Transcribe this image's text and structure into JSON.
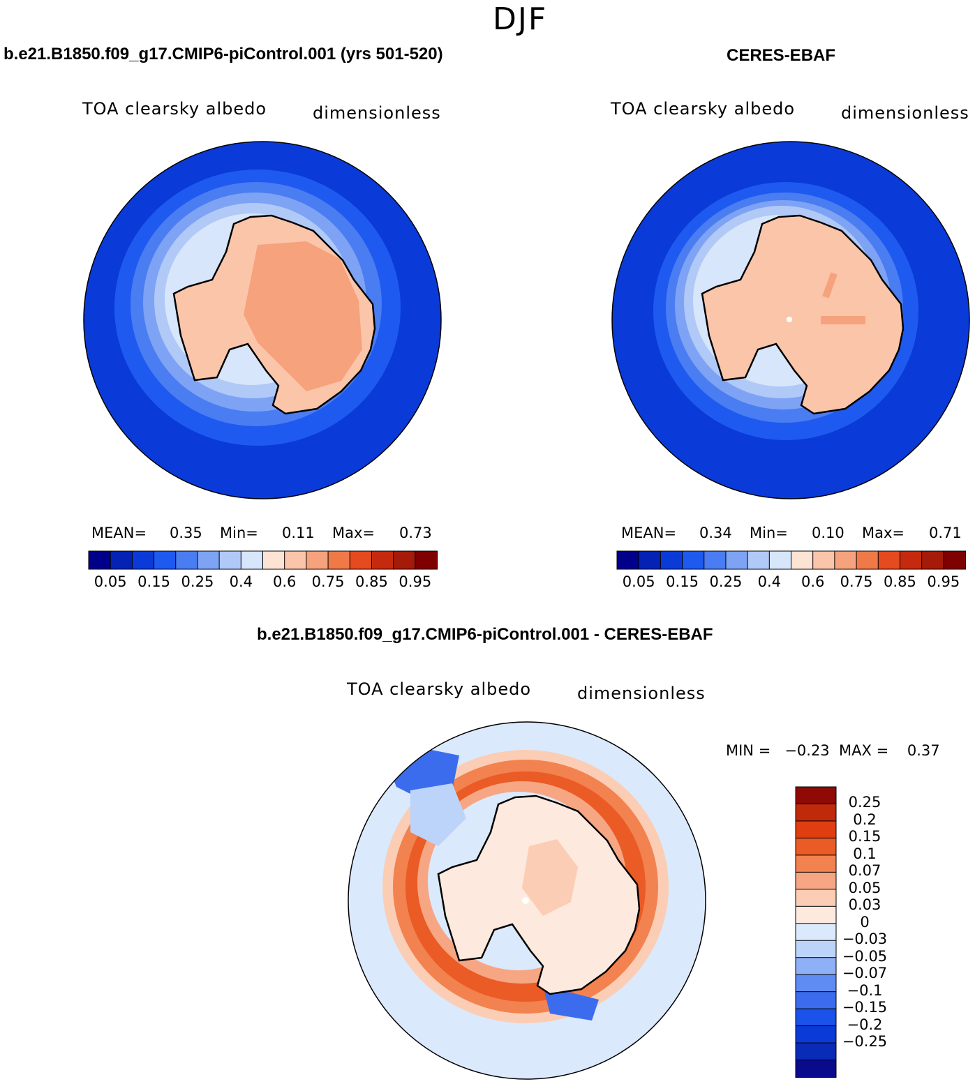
{
  "season": "DJF",
  "colors": {
    "seq": [
      "#00008a",
      "#0422b4",
      "#0a3ad8",
      "#1e5af0",
      "#4a7cf2",
      "#7ea3f4",
      "#b1c9f7",
      "#d7e6fb",
      "#fde3d4",
      "#fbc5aa",
      "#f6a27c",
      "#ef7a48",
      "#e54b1f",
      "#c52a0e",
      "#a51a09",
      "#7f0000"
    ],
    "diff": [
      "#0a0a8c",
      "#0a2ab8",
      "#0a3ad8",
      "#1a52ea",
      "#3a6ced",
      "#5f8cf2",
      "#8eb0f6",
      "#bcd4fa",
      "#dbe9fc",
      "#fde9dd",
      "#fbcdb4",
      "#f7a683",
      "#f2824f",
      "#ea5b25",
      "#e03e10",
      "#c02a0a",
      "#8f0a05"
    ]
  },
  "panels": {
    "model": {
      "title": "b.e21.B1850.f09_g17.CMIP6-piControl.001 (yrs 501-520)",
      "variable": "TOA clearsky albedo",
      "units": "dimensionless",
      "stats": {
        "mean_label": "MEAN=",
        "mean": "0.35",
        "min_label": "Min=",
        "min": "0.11",
        "max_label": "Max=",
        "max": "0.73"
      },
      "colorbar_ticks": [
        "0.05",
        "0.15",
        "0.25",
        "0.4",
        "0.6",
        "0.75",
        "0.85",
        "0.95"
      ]
    },
    "obs": {
      "title": "CERES-EBAF",
      "variable": "TOA clearsky albedo",
      "units": "dimensionless",
      "stats": {
        "mean_label": "MEAN=",
        "mean": "0.34",
        "min_label": "Min=",
        "min": "0.10",
        "max_label": "Max=",
        "max": "0.71"
      },
      "colorbar_ticks": [
        "0.05",
        "0.15",
        "0.25",
        "0.4",
        "0.6",
        "0.75",
        "0.85",
        "0.95"
      ]
    },
    "diff": {
      "title": "b.e21.B1850.f09_g17.CMIP6-piControl.001 - CERES-EBAF",
      "variable": "TOA clearsky albedo",
      "units": "dimensionless",
      "minmax": "MIN =   −0.23  MAX =    0.37",
      "colorbar_ticks": [
        "0.25",
        "0.2",
        "0.15",
        "0.1",
        "0.07",
        "0.05",
        "0.03",
        "0",
        "−0.03",
        "−0.05",
        "−0.07",
        "−0.1",
        "−0.15",
        "−0.2",
        "−0.25"
      ]
    }
  }
}
